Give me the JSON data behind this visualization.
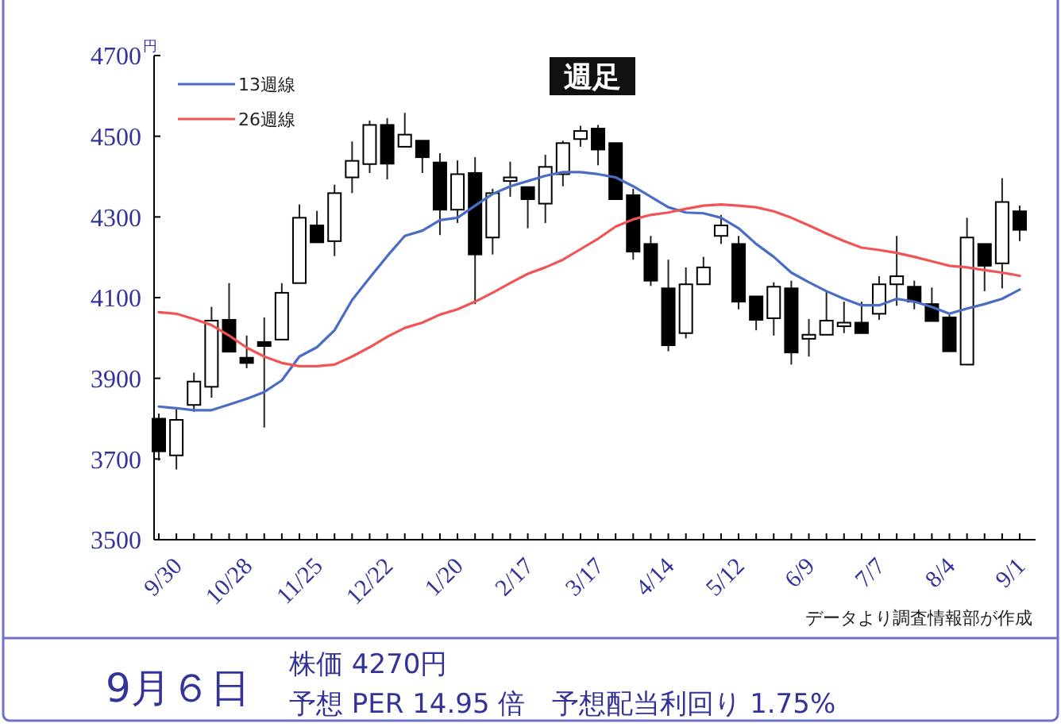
{
  "chart_data": {
    "type": "candlestick",
    "title": "週足",
    "ylabel": "円",
    "categories": [
      "9/30",
      null,
      null,
      null,
      "10/28",
      null,
      null,
      null,
      "11/25",
      null,
      null,
      null,
      "12/22",
      null,
      null,
      null,
      "1/20",
      null,
      null,
      null,
      "2/17",
      null,
      null,
      null,
      "3/17",
      null,
      null,
      null,
      "4/14",
      null,
      null,
      null,
      "5/12",
      null,
      null,
      null,
      "6/9",
      null,
      null,
      null,
      "7/7",
      null,
      null,
      null,
      "8/4",
      null,
      null,
      null,
      "9/1",
      null
    ],
    "ohlc": [
      [
        3800,
        3813,
        3696,
        3719
      ],
      [
        3709,
        3826,
        3674,
        3797
      ],
      [
        3834,
        3914,
        3817,
        3892
      ],
      [
        3879,
        4077,
        3852,
        4043
      ],
      [
        4045,
        4136,
        3966,
        3966
      ],
      [
        3951,
        4006,
        3925,
        3938
      ],
      [
        3990,
        4051,
        3778,
        3980
      ],
      [
        3996,
        4136,
        3996,
        4112
      ],
      [
        4136,
        4331,
        4136,
        4298
      ],
      [
        4279,
        4315,
        4237,
        4237
      ],
      [
        4240,
        4380,
        4203,
        4359
      ],
      [
        4398,
        4487,
        4359,
        4439
      ],
      [
        4431,
        4539,
        4409,
        4528
      ],
      [
        4528,
        4545,
        4393,
        4432
      ],
      [
        4474,
        4558,
        4474,
        4504
      ],
      [
        4489,
        4489,
        4409,
        4448
      ],
      [
        4435,
        4458,
        4255,
        4318
      ],
      [
        4318,
        4440,
        4285,
        4406
      ],
      [
        4409,
        4448,
        4084,
        4207
      ],
      [
        4249,
        4370,
        4207,
        4359
      ],
      [
        4389,
        4437,
        4350,
        4398
      ],
      [
        4374,
        4374,
        4272,
        4344
      ],
      [
        4333,
        4454,
        4285,
        4424
      ],
      [
        4406,
        4489,
        4376,
        4483
      ],
      [
        4493,
        4526,
        4474,
        4513
      ],
      [
        4519,
        4528,
        4428,
        4467
      ],
      [
        4483,
        4483,
        4344,
        4344
      ],
      [
        4354,
        4370,
        4194,
        4214
      ],
      [
        4233,
        4253,
        4129,
        4142
      ],
      [
        4123,
        4194,
        3967,
        3982
      ],
      [
        4012,
        4175,
        3999,
        4133
      ],
      [
        4133,
        4201,
        4133,
        4175
      ],
      [
        4253,
        4305,
        4233,
        4279
      ],
      [
        4233,
        4253,
        4071,
        4090
      ],
      [
        4103,
        4103,
        4019,
        4045
      ],
      [
        4049,
        4138,
        4006,
        4127
      ],
      [
        4123,
        4142,
        3934,
        3964
      ],
      [
        3998,
        4047,
        3954,
        4008
      ],
      [
        4008,
        4116,
        4008,
        4043
      ],
      [
        4029,
        4090,
        4012,
        4038
      ],
      [
        4038,
        4090,
        4012,
        4012
      ],
      [
        4060,
        4153,
        4045,
        4133
      ],
      [
        4133,
        4253,
        4080,
        4153
      ],
      [
        4127,
        4142,
        4071,
        4090
      ],
      [
        4084,
        4125,
        4042,
        4042
      ],
      [
        4051,
        4058,
        3967,
        3967
      ],
      [
        3934,
        4298,
        3934,
        4249
      ],
      [
        4233,
        4233,
        4116,
        4179
      ],
      [
        4185,
        4396,
        4123,
        4337
      ],
      [
        4314,
        4328,
        4240,
        4268
      ]
    ],
    "series": [
      {
        "name": "13週線",
        "type": "line",
        "color": "#4a6cc4",
        "values": [
          3830,
          3826,
          3821,
          3821,
          3835,
          3849,
          3866,
          3895,
          3954,
          3977,
          4019,
          4094,
          4149,
          4203,
          4253,
          4266,
          4292,
          4298,
          4328,
          4357,
          4376,
          4389,
          4402,
          4411,
          4411,
          4406,
          4398,
          4376,
          4350,
          4324,
          4311,
          4309,
          4298,
          4272,
          4233,
          4201,
          4162,
          4138,
          4116,
          4097,
          4081,
          4081,
          4097,
          4090,
          4077,
          4060,
          4073,
          4084,
          4097,
          4120
        ]
      },
      {
        "name": "26週線",
        "type": "line",
        "color": "#f05555",
        "values": [
          4064,
          4060,
          4047,
          4032,
          4006,
          3976,
          3954,
          3938,
          3930,
          3930,
          3934,
          3954,
          3977,
          4003,
          4025,
          4038,
          4058,
          4071,
          4090,
          4112,
          4136,
          4159,
          4175,
          4194,
          4220,
          4246,
          4276,
          4294,
          4305,
          4311,
          4320,
          4328,
          4331,
          4328,
          4324,
          4314,
          4298,
          4279,
          4259,
          4240,
          4224,
          4218,
          4211,
          4201,
          4190,
          4179,
          4175,
          4168,
          4162,
          4154
        ]
      }
    ],
    "ylim": [
      3500,
      4700
    ],
    "yticks": [
      3500,
      3700,
      3900,
      4100,
      4300,
      4500,
      4700
    ],
    "legend": "top left",
    "annotations": [
      "データより調査情報部が作成",
      "9月６日",
      "株価 4270円",
      "予想 PER 14.95 倍　予想配当利回り 1.75%"
    ]
  }
}
